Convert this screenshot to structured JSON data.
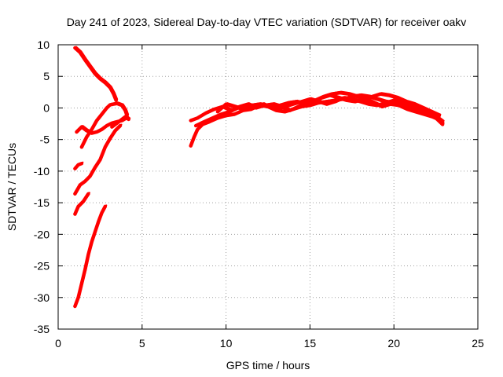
{
  "chart_data": {
    "type": "scatter",
    "title": "Day 241 of 2023, Sidereal Day-to-day VTEC variation (SDTVAR) for receiver oakv",
    "xlabel": "GPS time / hours",
    "ylabel": "SDTVAR / TECUs",
    "xlim": [
      0,
      25
    ],
    "ylim": [
      -35,
      10
    ],
    "xticks": [
      0,
      5,
      10,
      15,
      20,
      25
    ],
    "yticks": [
      -35,
      -30,
      -25,
      -20,
      -15,
      -10,
      -5,
      0,
      5,
      10
    ],
    "xtick_labels": [
      "0",
      "5",
      "10",
      "15",
      "20",
      "25"
    ],
    "ytick_labels": [
      "-35",
      "-30",
      "-25",
      "-20",
      "-15",
      "-10",
      "-5",
      "0",
      "5",
      "10"
    ],
    "grid": true,
    "color": "#ff0000",
    "series": [
      {
        "name": "trace-1",
        "x": [
          1.0,
          1.3,
          1.6,
          1.9,
          2.2,
          2.5,
          2.8,
          3.1,
          3.3,
          3.45
        ],
        "y": [
          9.5,
          8.8,
          7.6,
          6.5,
          5.4,
          4.6,
          4.0,
          3.2,
          2.2,
          1.2
        ]
      },
      {
        "name": "trace-2",
        "x": [
          1.1,
          1.4,
          1.7,
          2.0,
          2.3,
          2.6,
          2.9,
          3.2,
          3.5,
          3.8,
          4.0,
          4.1,
          4.2
        ],
        "y": [
          -3.8,
          -3.0,
          -3.6,
          -4.0,
          -3.8,
          -3.4,
          -2.8,
          -2.4,
          -2.2,
          -2.0,
          -1.7,
          -1.6,
          -1.8
        ]
      },
      {
        "name": "trace-3",
        "x": [
          1.4,
          1.7,
          2.0,
          2.3,
          2.6,
          2.9,
          3.1,
          3.3,
          3.5,
          3.8,
          4.0,
          4.1,
          3.8,
          3.5,
          3.2
        ],
        "y": [
          -6.2,
          -4.6,
          -3.4,
          -2.0,
          -1.0,
          0.0,
          0.5,
          0.6,
          0.7,
          0.4,
          -0.4,
          -1.2,
          -1.8,
          -2.4,
          -3.0
        ]
      },
      {
        "name": "trace-4",
        "x": [
          1.0,
          1.2,
          1.4
        ],
        "y": [
          -9.6,
          -9.0,
          -8.8
        ]
      },
      {
        "name": "trace-5",
        "x": [
          1.0,
          1.3,
          1.6,
          1.9,
          2.2,
          2.5,
          2.8,
          3.1,
          3.4,
          3.7
        ],
        "y": [
          -13.6,
          -12.2,
          -11.6,
          -10.8,
          -9.4,
          -8.2,
          -6.2,
          -4.8,
          -3.6,
          -2.8
        ]
      },
      {
        "name": "trace-6",
        "x": [
          1.0,
          1.2,
          1.5,
          1.8
        ],
        "y": [
          -16.8,
          -15.6,
          -14.8,
          -13.6
        ]
      },
      {
        "name": "trace-7",
        "x": [
          1.0,
          1.2,
          1.4,
          1.6,
          1.8,
          2.0,
          2.2,
          2.4,
          2.6,
          2.8
        ],
        "y": [
          -31.4,
          -30.0,
          -27.8,
          -25.6,
          -23.2,
          -21.2,
          -19.6,
          -18.0,
          -16.6,
          -15.6
        ]
      },
      {
        "name": "trace-8",
        "x": [
          7.9,
          8.1,
          8.3,
          8.6,
          9.0,
          9.5,
          10.0,
          10.5,
          11.0,
          11.5,
          12.0,
          12.5,
          13.0,
          13.5,
          14.0,
          14.5,
          15.0,
          15.5,
          16.0,
          16.5,
          17.0,
          17.5,
          18.0,
          18.5,
          19.0,
          19.5,
          20.0,
          20.5,
          21.0,
          21.5,
          22.0,
          22.5,
          22.9
        ],
        "y": [
          -6.0,
          -4.6,
          -3.4,
          -2.6,
          -2.2,
          -1.6,
          -1.2,
          -1.0,
          -0.4,
          -0.2,
          0.4,
          0.2,
          -0.4,
          -0.6,
          -0.2,
          0.2,
          0.4,
          0.8,
          1.0,
          1.2,
          1.4,
          1.8,
          2.0,
          1.8,
          1.4,
          1.0,
          0.8,
          0.4,
          0.0,
          -0.4,
          -0.8,
          -1.4,
          -2.2
        ]
      },
      {
        "name": "trace-9",
        "x": [
          7.9,
          8.3,
          8.8,
          9.3,
          9.8,
          10.3,
          10.8,
          11.3,
          11.8,
          12.3,
          12.8,
          13.3,
          13.8,
          14.3,
          14.8,
          15.3,
          15.8,
          16.3,
          16.8,
          17.3,
          17.8,
          18.3,
          18.8,
          19.3,
          19.8,
          20.3,
          20.8,
          21.3,
          21.8,
          22.3,
          22.8
        ],
        "y": [
          -2.0,
          -1.6,
          -0.8,
          -0.2,
          0.2,
          -0.4,
          0.2,
          0.6,
          0.0,
          0.4,
          0.6,
          0.2,
          -0.4,
          0.2,
          0.8,
          1.2,
          1.8,
          2.2,
          2.4,
          2.2,
          1.8,
          1.4,
          0.8,
          0.2,
          0.6,
          0.4,
          -0.2,
          -0.6,
          -1.0,
          -1.4,
          -2.0
        ]
      },
      {
        "name": "trace-10",
        "x": [
          8.2,
          8.7,
          9.2,
          9.7,
          10.2,
          10.7,
          11.2,
          11.7,
          12.2,
          12.7,
          13.2,
          13.7,
          14.2,
          14.7,
          15.2,
          15.7,
          16.2,
          16.7,
          17.2,
          17.7,
          18.2,
          18.7,
          19.2,
          19.7,
          20.2,
          20.7,
          21.2,
          21.7,
          22.2,
          22.7
        ],
        "y": [
          -2.8,
          -2.2,
          -1.6,
          -1.0,
          -0.6,
          0.0,
          0.4,
          0.2,
          0.6,
          0.0,
          0.4,
          0.8,
          1.0,
          0.6,
          1.0,
          1.6,
          2.0,
          1.6,
          1.2,
          1.0,
          1.4,
          1.8,
          2.2,
          2.0,
          1.6,
          1.0,
          0.6,
          0.0,
          -0.6,
          -1.2
        ]
      },
      {
        "name": "trace-11",
        "x": [
          9.5,
          10.0,
          10.5,
          11.0,
          11.5,
          12.0,
          12.5,
          13.0,
          13.5,
          14.0,
          14.5,
          15.0,
          15.5,
          16.0,
          16.5,
          17.0,
          17.5,
          18.0,
          18.5,
          19.0,
          19.5,
          20.0,
          20.5,
          21.0,
          21.5,
          22.0,
          22.5,
          22.9
        ],
        "y": [
          -0.6,
          0.6,
          0.2,
          -0.2,
          0.4,
          0.6,
          0.2,
          -0.2,
          0.2,
          0.6,
          1.0,
          1.4,
          1.0,
          0.6,
          1.0,
          1.6,
          1.4,
          1.0,
          0.6,
          0.4,
          0.8,
          1.2,
          1.0,
          0.4,
          -0.2,
          -0.8,
          -1.6,
          -2.6
        ]
      }
    ]
  }
}
